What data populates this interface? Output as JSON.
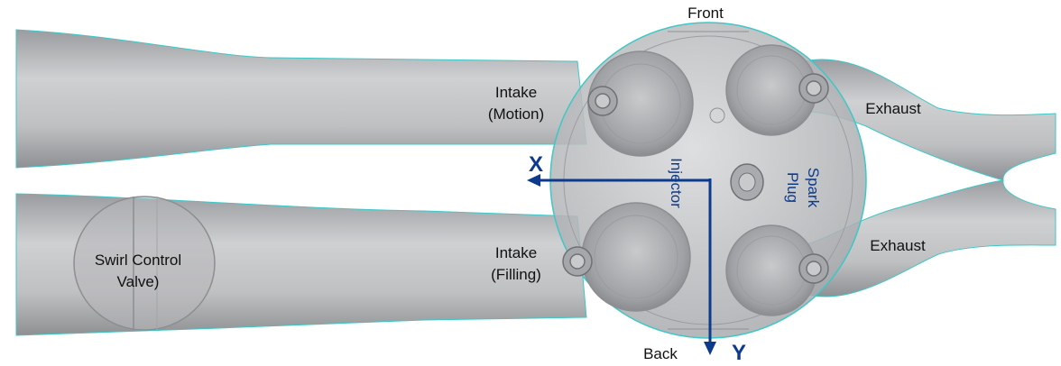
{
  "labels": {
    "front": "Front",
    "back": "Back",
    "intake_motion_line1": "Intake",
    "intake_motion_line2": "(Motion)",
    "intake_filling_line1": "Intake",
    "intake_filling_line2": "(Filling)",
    "exhaust_top": "Exhaust",
    "exhaust_bottom": "Exhaust",
    "injector": "Injector",
    "spark_line1": "Spark",
    "spark_line2": "Plug",
    "swirl_line1": "Swirl Control",
    "swirl_line2": "Valve)"
  },
  "axes": {
    "x": "X",
    "y": "Y"
  },
  "colors": {
    "axis": "#0d3a8c",
    "geometry": "#b9babc",
    "geometry_dark": "#8f9194",
    "outline": "#3ec7c7"
  }
}
